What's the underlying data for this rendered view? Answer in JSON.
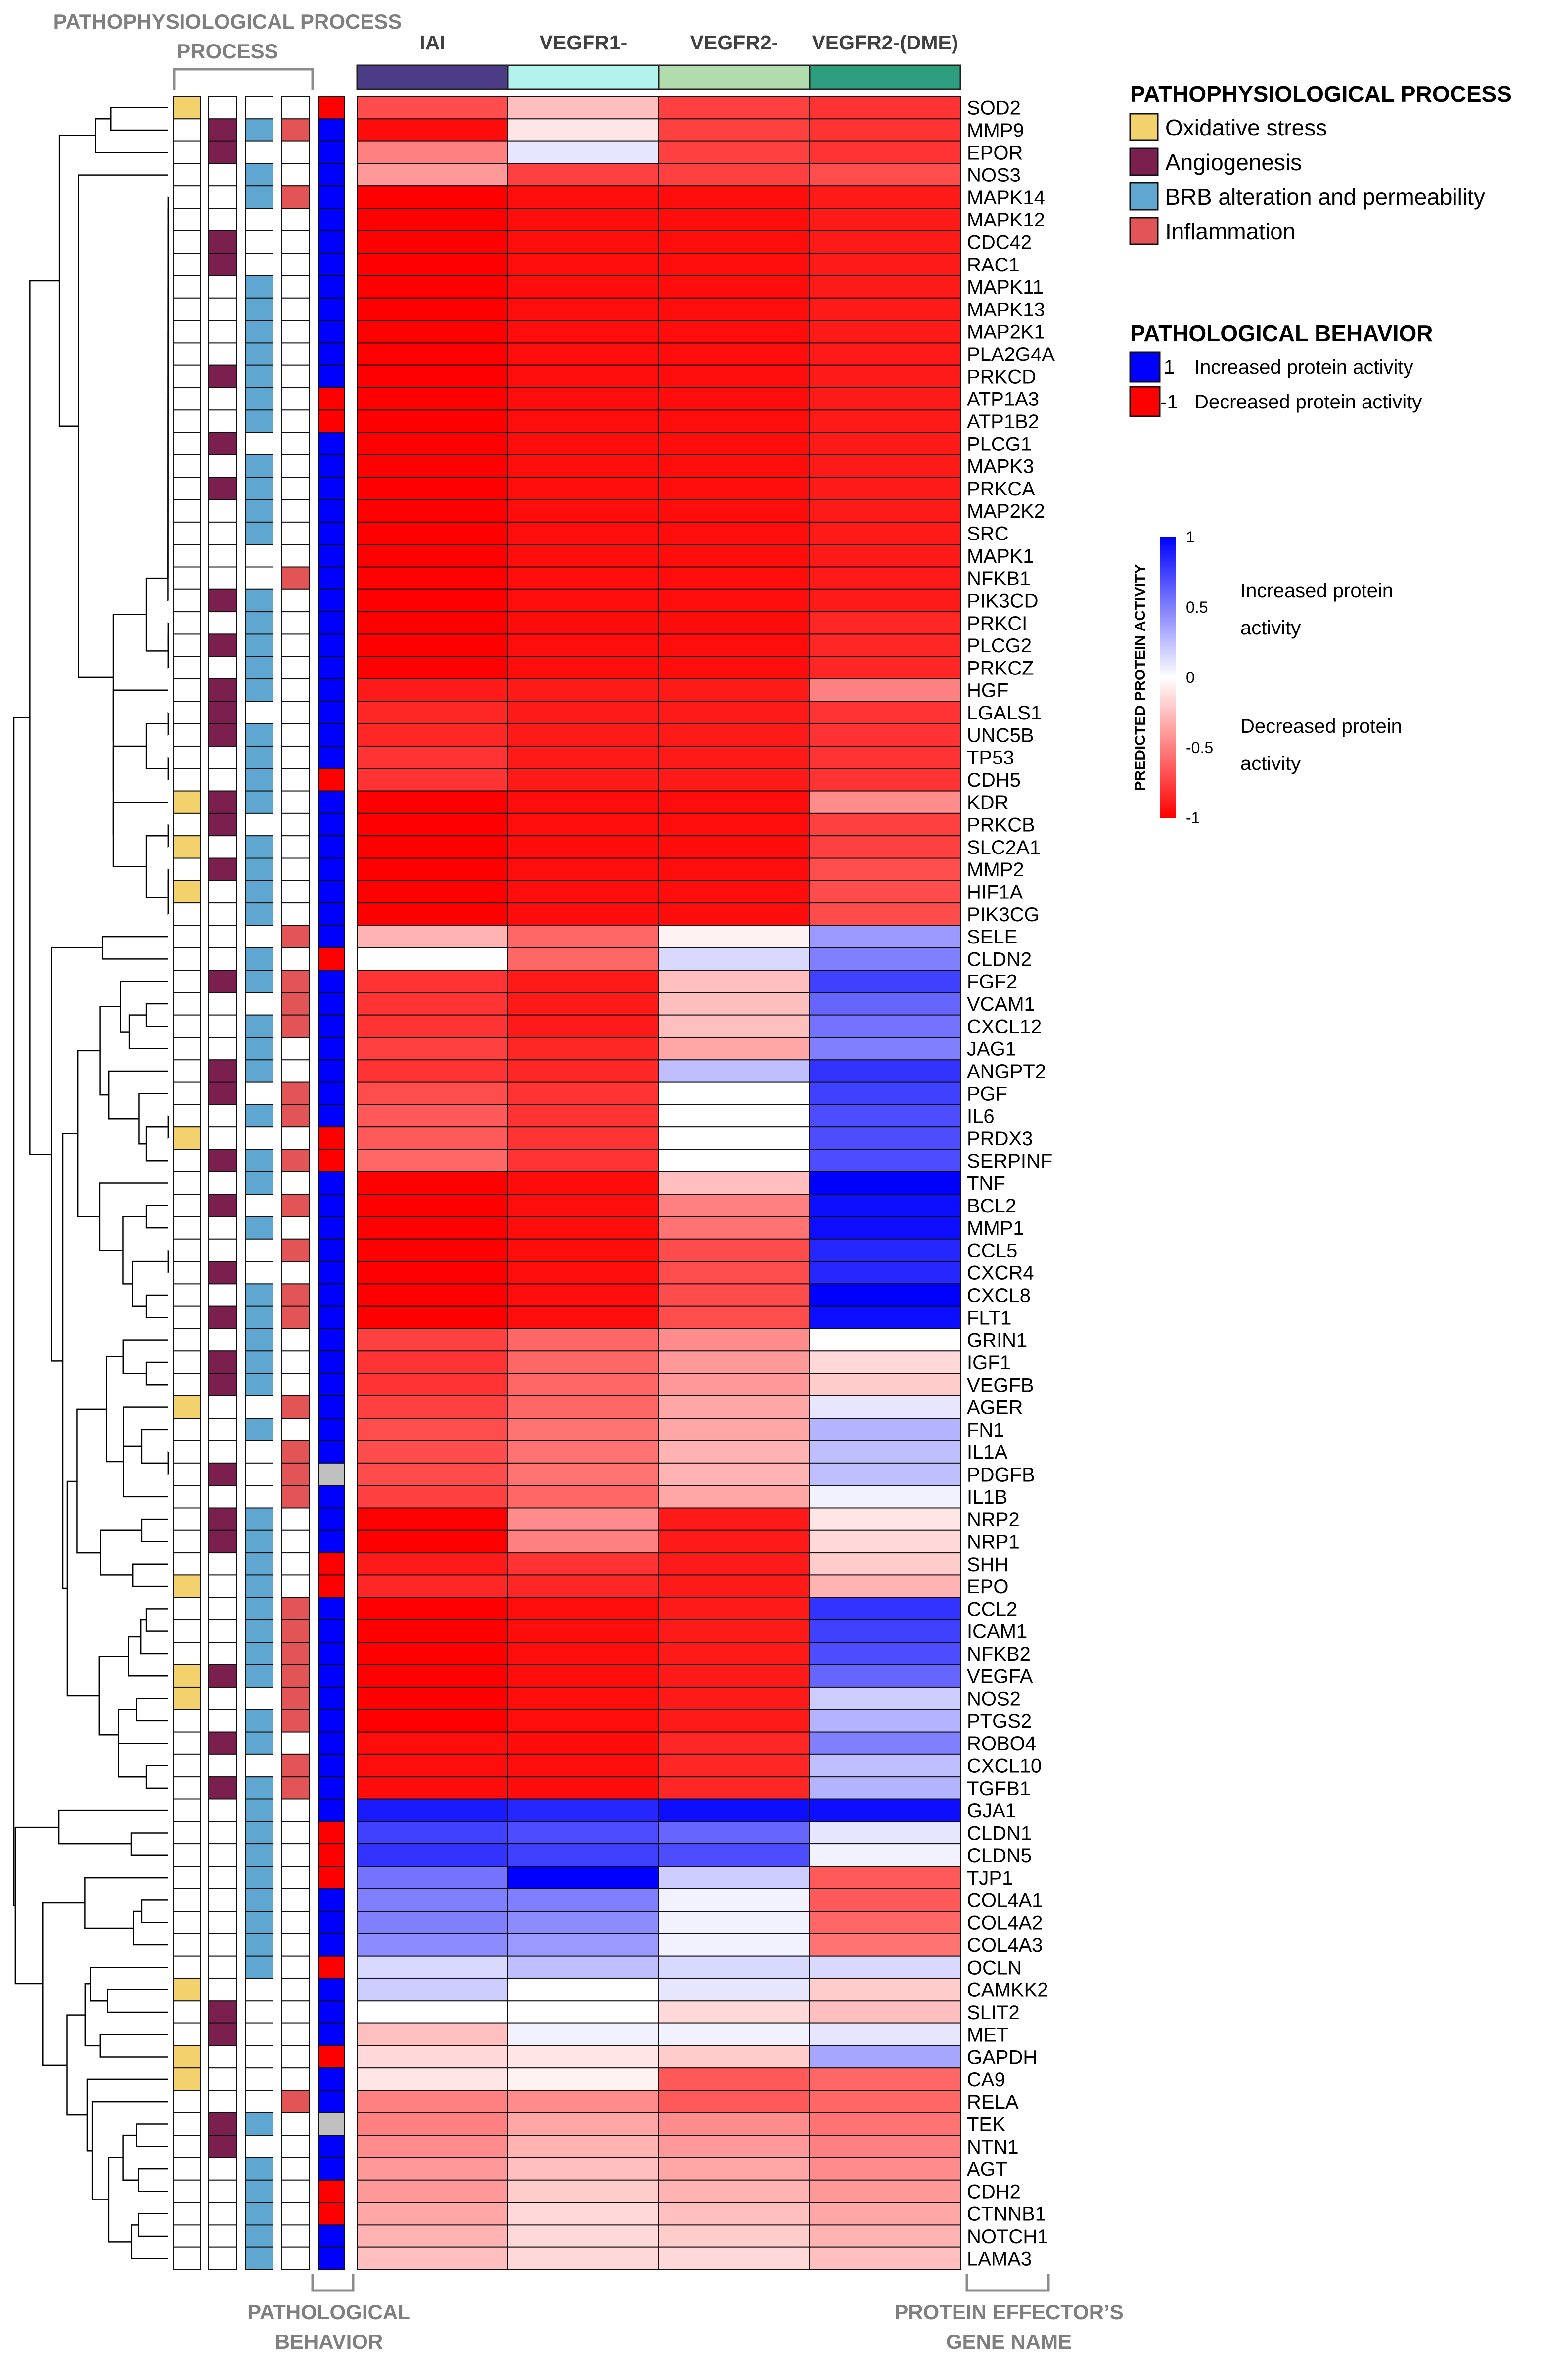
{
  "chart_data": {
    "type": "heatmap",
    "title": "",
    "columns": [
      "IAI",
      "VEGFR1-",
      "VEGFR2-",
      "VEGFR2-(DME)"
    ],
    "column_colors": [
      "#4b3c85",
      "#b3f3ee",
      "#b0dcae",
      "#2c9e7e"
    ],
    "genes": [
      "SOD2",
      "MMP9",
      "EPOR",
      "NOS3",
      "MAPK14",
      "MAPK12",
      "CDC42",
      "RAC1",
      "MAPK11",
      "MAPK13",
      "MAP2K1",
      "PLA2G4A",
      "PRKCD",
      "ATP1A3",
      "ATP1B2",
      "PLCG1",
      "MAPK3",
      "PRKCA",
      "MAP2K2",
      "SRC",
      "MAPK1",
      "NFKB1",
      "PIK3CD",
      "PRKCI",
      "PLCG2",
      "PRKCZ",
      "HGF",
      "LGALS1",
      "UNC5B",
      "TP53",
      "CDH5",
      "KDR",
      "PRKCB",
      "SLC2A1",
      "MMP2",
      "HIF1A",
      "PIK3CG",
      "SELE",
      "CLDN2",
      "FGF2",
      "VCAM1",
      "CXCL12",
      "JAG1",
      "ANGPT2",
      "PGF",
      "IL6",
      "PRDX3",
      "SERPINF",
      "TNF",
      "BCL2",
      "MMP1",
      "CCL5",
      "CXCR4",
      "CXCL8",
      "FLT1",
      "GRIN1",
      "IGF1",
      "VEGFB",
      "AGER",
      "FN1",
      "IL1A",
      "PDGFB",
      "IL1B",
      "NRP2",
      "NRP1",
      "SHH",
      "EPO",
      "CCL2",
      "ICAM1",
      "NFKB2",
      "VEGFA",
      "NOS2",
      "PTGS2",
      "ROBO4",
      "CXCL10",
      "TGFB1",
      "GJA1",
      "CLDN1",
      "CLDN5",
      "TJP1",
      "COL4A1",
      "COL4A2",
      "COL4A3",
      "OCLN",
      "CAMKK2",
      "SLIT2",
      "MET",
      "GAPDH",
      "CA9",
      "RELA",
      "TEK",
      "NTN1",
      "AGT",
      "CDH2",
      "CTNNB1",
      "NOTCH1",
      "LAMA3"
    ],
    "values": [
      [
        -0.7,
        -0.25,
        -0.75,
        -0.8
      ],
      [
        -0.95,
        -0.1,
        -0.75,
        -0.8
      ],
      [
        -0.5,
        0.1,
        -0.75,
        -0.8
      ],
      [
        -0.4,
        -0.75,
        -0.75,
        -0.7
      ],
      [
        -1,
        -0.95,
        -0.95,
        -0.9
      ],
      [
        -1,
        -0.95,
        -0.95,
        -0.9
      ],
      [
        -1,
        -0.95,
        -0.95,
        -0.9
      ],
      [
        -1,
        -0.95,
        -0.95,
        -0.9
      ],
      [
        -1,
        -0.95,
        -0.95,
        -0.9
      ],
      [
        -1,
        -0.95,
        -0.95,
        -0.9
      ],
      [
        -1,
        -0.95,
        -0.95,
        -0.9
      ],
      [
        -1,
        -0.95,
        -0.95,
        -0.9
      ],
      [
        -1,
        -0.95,
        -0.95,
        -0.9
      ],
      [
        -1,
        -0.95,
        -0.95,
        -0.9
      ],
      [
        -1,
        -0.95,
        -0.95,
        -0.9
      ],
      [
        -1,
        -0.95,
        -0.95,
        -0.9
      ],
      [
        -1,
        -0.95,
        -0.95,
        -0.9
      ],
      [
        -1,
        -0.95,
        -0.95,
        -0.9
      ],
      [
        -1,
        -0.95,
        -0.95,
        -0.9
      ],
      [
        -1,
        -0.95,
        -0.95,
        -0.9
      ],
      [
        -1,
        -0.95,
        -0.95,
        -0.9
      ],
      [
        -1,
        -0.95,
        -0.95,
        -0.9
      ],
      [
        -1,
        -0.95,
        -0.95,
        -0.9
      ],
      [
        -1,
        -0.95,
        -0.95,
        -0.85
      ],
      [
        -1,
        -0.95,
        -0.95,
        -0.85
      ],
      [
        -1,
        -0.95,
        -0.95,
        -0.85
      ],
      [
        -0.9,
        -0.9,
        -0.9,
        -0.5
      ],
      [
        -0.85,
        -0.9,
        -0.9,
        -0.8
      ],
      [
        -0.85,
        -0.9,
        -0.9,
        -0.8
      ],
      [
        -0.8,
        -0.9,
        -0.9,
        -0.8
      ],
      [
        -0.8,
        -0.9,
        -0.9,
        -0.8
      ],
      [
        -1,
        -0.95,
        -0.95,
        -0.45
      ],
      [
        -1,
        -0.95,
        -0.95,
        -0.75
      ],
      [
        -1,
        -0.95,
        -0.95,
        -0.75
      ],
      [
        -1,
        -0.95,
        -0.95,
        -0.7
      ],
      [
        -1,
        -0.95,
        -0.95,
        -0.7
      ],
      [
        -1,
        -0.95,
        -0.95,
        -0.7
      ],
      [
        -0.3,
        -0.6,
        -0.05,
        0.4
      ],
      [
        0,
        -0.6,
        0.15,
        0.5
      ],
      [
        -0.8,
        -0.9,
        -0.25,
        0.75
      ],
      [
        -0.8,
        -0.9,
        -0.25,
        0.6
      ],
      [
        -0.8,
        -0.9,
        -0.25,
        0.55
      ],
      [
        -0.75,
        -0.85,
        -0.35,
        0.5
      ],
      [
        -0.8,
        -0.85,
        0.25,
        0.8
      ],
      [
        -0.7,
        -0.8,
        0,
        0.75
      ],
      [
        -0.65,
        -0.8,
        0,
        0.7
      ],
      [
        -0.65,
        -0.8,
        0,
        0.7
      ],
      [
        -0.6,
        -0.8,
        0,
        0.7
      ],
      [
        -1,
        -0.95,
        -0.25,
        1
      ],
      [
        -1,
        -0.95,
        -0.5,
        0.95
      ],
      [
        -1,
        -0.95,
        -0.55,
        0.95
      ],
      [
        -1,
        -0.95,
        -0.7,
        0.85
      ],
      [
        -1,
        -0.95,
        -0.7,
        0.85
      ],
      [
        -1,
        -0.95,
        -0.7,
        1
      ],
      [
        -1,
        -0.95,
        -0.7,
        0.95
      ],
      [
        -0.75,
        -0.6,
        -0.45,
        0
      ],
      [
        -0.8,
        -0.6,
        -0.4,
        -0.15
      ],
      [
        -0.8,
        -0.6,
        -0.4,
        -0.2
      ],
      [
        -0.75,
        -0.6,
        -0.35,
        0.1
      ],
      [
        -0.7,
        -0.55,
        -0.35,
        0.3
      ],
      [
        -0.7,
        -0.55,
        -0.3,
        0.25
      ],
      [
        -0.7,
        -0.55,
        -0.3,
        0.25
      ],
      [
        -0.75,
        -0.6,
        -0.35,
        0.05
      ],
      [
        -1,
        -0.45,
        -0.9,
        -0.1
      ],
      [
        -1,
        -0.5,
        -0.9,
        -0.15
      ],
      [
        -0.9,
        -0.8,
        -0.9,
        -0.2
      ],
      [
        -0.85,
        -0.85,
        -0.9,
        -0.3
      ],
      [
        -1,
        -0.95,
        -0.9,
        0.8
      ],
      [
        -1,
        -0.95,
        -0.9,
        0.75
      ],
      [
        -1,
        -0.95,
        -0.9,
        0.7
      ],
      [
        -1,
        -0.95,
        -0.9,
        0.6
      ],
      [
        -1,
        -0.95,
        -0.9,
        0.2
      ],
      [
        -1,
        -0.95,
        -0.9,
        0.3
      ],
      [
        -0.95,
        -0.95,
        -0.85,
        0.5
      ],
      [
        -0.95,
        -0.95,
        -0.85,
        0.25
      ],
      [
        -0.95,
        -0.95,
        -0.85,
        0.3
      ],
      [
        0.9,
        0.85,
        0.95,
        0.95
      ],
      [
        0.75,
        0.7,
        0.6,
        0.1
      ],
      [
        0.8,
        0.75,
        0.7,
        0.05
      ],
      [
        0.55,
        1,
        0.2,
        -0.65
      ],
      [
        0.5,
        0.5,
        0.05,
        -0.65
      ],
      [
        0.5,
        0.45,
        0.05,
        -0.6
      ],
      [
        0.45,
        0.4,
        0.05,
        -0.55
      ],
      [
        0.15,
        0.25,
        0.15,
        0.15
      ],
      [
        0.2,
        0,
        0.1,
        -0.2
      ],
      [
        0,
        0,
        -0.15,
        -0.25
      ],
      [
        -0.25,
        0.05,
        0.05,
        0.1
      ],
      [
        -0.15,
        -0.1,
        -0.2,
        0.35
      ],
      [
        -0.1,
        -0.05,
        -0.65,
        -0.6
      ],
      [
        -0.5,
        -0.45,
        -0.65,
        -0.6
      ],
      [
        -0.5,
        -0.35,
        -0.45,
        -0.55
      ],
      [
        -0.45,
        -0.3,
        -0.4,
        -0.5
      ],
      [
        -0.4,
        -0.25,
        -0.35,
        -0.45
      ],
      [
        -0.4,
        -0.2,
        -0.3,
        -0.4
      ],
      [
        -0.35,
        -0.15,
        -0.25,
        -0.35
      ],
      [
        -0.3,
        -0.15,
        -0.2,
        -0.3
      ],
      [
        -0.25,
        -0.15,
        -0.15,
        -0.25
      ]
    ],
    "pathological_behavior": [
      -1,
      1,
      1,
      1,
      1,
      1,
      1,
      1,
      1,
      1,
      1,
      1,
      1,
      -1,
      -1,
      1,
      1,
      1,
      1,
      1,
      1,
      1,
      1,
      1,
      1,
      1,
      1,
      1,
      1,
      1,
      -1,
      1,
      1,
      1,
      1,
      1,
      1,
      1,
      -1,
      1,
      1,
      1,
      1,
      1,
      1,
      1,
      -1,
      -1,
      1,
      1,
      1,
      1,
      1,
      1,
      1,
      1,
      1,
      1,
      1,
      1,
      1,
      0,
      1,
      1,
      1,
      -1,
      -1,
      1,
      1,
      1,
      1,
      1,
      1,
      1,
      1,
      1,
      1,
      -1,
      -1,
      -1,
      1,
      1,
      1,
      -1,
      1,
      1,
      1,
      -1,
      1,
      1,
      0,
      1,
      1,
      -1,
      -1,
      1,
      1
    ],
    "process_membership": [
      [
        1,
        0,
        0,
        0
      ],
      [
        0,
        1,
        1,
        1
      ],
      [
        0,
        1,
        0,
        0
      ],
      [
        0,
        0,
        1,
        0
      ],
      [
        0,
        0,
        1,
        1
      ],
      [
        0,
        0,
        0,
        0
      ],
      [
        0,
        1,
        0,
        0
      ],
      [
        0,
        1,
        0,
        0
      ],
      [
        0,
        0,
        1,
        0
      ],
      [
        0,
        0,
        1,
        0
      ],
      [
        0,
        0,
        1,
        0
      ],
      [
        0,
        0,
        1,
        0
      ],
      [
        0,
        1,
        1,
        0
      ],
      [
        0,
        0,
        1,
        0
      ],
      [
        0,
        0,
        1,
        0
      ],
      [
        0,
        1,
        0,
        0
      ],
      [
        0,
        0,
        1,
        0
      ],
      [
        0,
        1,
        1,
        0
      ],
      [
        0,
        0,
        1,
        0
      ],
      [
        0,
        0,
        1,
        0
      ],
      [
        0,
        0,
        0,
        0
      ],
      [
        0,
        0,
        0,
        1
      ],
      [
        0,
        1,
        1,
        0
      ],
      [
        0,
        0,
        1,
        0
      ],
      [
        0,
        1,
        1,
        0
      ],
      [
        0,
        0,
        1,
        0
      ],
      [
        0,
        1,
        1,
        0
      ],
      [
        0,
        1,
        0,
        0
      ],
      [
        0,
        1,
        1,
        0
      ],
      [
        0,
        0,
        1,
        0
      ],
      [
        0,
        0,
        1,
        0
      ],
      [
        1,
        1,
        1,
        0
      ],
      [
        0,
        1,
        0,
        0
      ],
      [
        1,
        0,
        1,
        0
      ],
      [
        0,
        1,
        1,
        0
      ],
      [
        1,
        0,
        1,
        0
      ],
      [
        0,
        0,
        1,
        0
      ],
      [
        0,
        0,
        0,
        1
      ],
      [
        0,
        0,
        1,
        0
      ],
      [
        0,
        1,
        1,
        1
      ],
      [
        0,
        0,
        0,
        1
      ],
      [
        0,
        0,
        1,
        1
      ],
      [
        0,
        0,
        1,
        0
      ],
      [
        0,
        1,
        1,
        0
      ],
      [
        0,
        1,
        0,
        1
      ],
      [
        0,
        0,
        1,
        1
      ],
      [
        1,
        0,
        0,
        0
      ],
      [
        0,
        1,
        1,
        1
      ],
      [
        0,
        0,
        1,
        0
      ],
      [
        0,
        1,
        0,
        1
      ],
      [
        0,
        0,
        1,
        0
      ],
      [
        0,
        0,
        0,
        1
      ],
      [
        0,
        1,
        0,
        0
      ],
      [
        0,
        0,
        1,
        1
      ],
      [
        0,
        1,
        1,
        1
      ],
      [
        0,
        0,
        1,
        0
      ],
      [
        0,
        1,
        1,
        0
      ],
      [
        0,
        1,
        1,
        0
      ],
      [
        1,
        0,
        0,
        1
      ],
      [
        0,
        0,
        1,
        0
      ],
      [
        0,
        0,
        0,
        1
      ],
      [
        0,
        1,
        0,
        1
      ],
      [
        0,
        0,
        0,
        1
      ],
      [
        0,
        1,
        1,
        0
      ],
      [
        0,
        1,
        1,
        0
      ],
      [
        0,
        0,
        1,
        0
      ],
      [
        1,
        0,
        1,
        0
      ],
      [
        0,
        0,
        1,
        1
      ],
      [
        0,
        0,
        1,
        1
      ],
      [
        0,
        0,
        1,
        1
      ],
      [
        1,
        1,
        1,
        1
      ],
      [
        1,
        0,
        0,
        1
      ],
      [
        0,
        0,
        1,
        1
      ],
      [
        0,
        1,
        1,
        0
      ],
      [
        0,
        0,
        0,
        1
      ],
      [
        0,
        1,
        1,
        1
      ],
      [
        0,
        0,
        1,
        0
      ],
      [
        0,
        0,
        1,
        0
      ],
      [
        0,
        0,
        1,
        0
      ],
      [
        0,
        0,
        1,
        0
      ],
      [
        0,
        0,
        1,
        0
      ],
      [
        0,
        0,
        1,
        0
      ],
      [
        0,
        0,
        1,
        0
      ],
      [
        0,
        0,
        1,
        0
      ],
      [
        1,
        0,
        0,
        0
      ],
      [
        0,
        1,
        0,
        0
      ],
      [
        0,
        1,
        0,
        0
      ],
      [
        1,
        0,
        0,
        0
      ],
      [
        1,
        0,
        0,
        0
      ],
      [
        0,
        0,
        0,
        1
      ],
      [
        0,
        1,
        1,
        0
      ],
      [
        0,
        1,
        0,
        0
      ],
      [
        0,
        0,
        1,
        0
      ],
      [
        0,
        0,
        1,
        0
      ],
      [
        0,
        0,
        1,
        0
      ],
      [
        0,
        0,
        1,
        0
      ],
      [
        0,
        0,
        1,
        0
      ]
    ],
    "labels": {
      "pathophysiological_process": "PATHOPHYSIOLOGICAL PROCESS",
      "pathological_behavior": "PATHOLOGICAL BEHAVIOR",
      "gene_name": "PROTEIN EFFECTOR’S GENE NAME"
    },
    "legend": {
      "process_title": "PATHOPHYSIOLOGICAL PROCESS",
      "processes": [
        {
          "label": "Oxidative stress",
          "color": "#f3d26e"
        },
        {
          "label": "Angiogenesis",
          "color": "#7b1f4f"
        },
        {
          "label": "BRB alteration and permeability",
          "color": "#5fa7d0"
        },
        {
          "label": "Inflammation",
          "color": "#e25455"
        }
      ],
      "behavior_title": "PATHOLOGICAL BEHAVIOR",
      "behaviors": [
        {
          "value": "1",
          "label": "Increased protein activity",
          "color": "#0000ff"
        },
        {
          "value": "-1",
          "label": "Decreased protein activity",
          "color": "#ff0000"
        }
      ]
    },
    "colorbar": {
      "title": "PREDICTED PROTEIN ACTIVITY",
      "ticks": [
        "1",
        "0.5",
        "0",
        "-0.5",
        "-1"
      ],
      "range": [
        -1,
        1
      ],
      "high_label_line1": "Increased protein",
      "high_label_line2": "activity",
      "low_label_line1": "Decreased protein",
      "low_label_line2": "activity"
    },
    "colors": {
      "positive": "#0000ff",
      "negative": "#ff0000",
      "neutral": "#ffffff",
      "missing": "#c0c0c0"
    }
  }
}
